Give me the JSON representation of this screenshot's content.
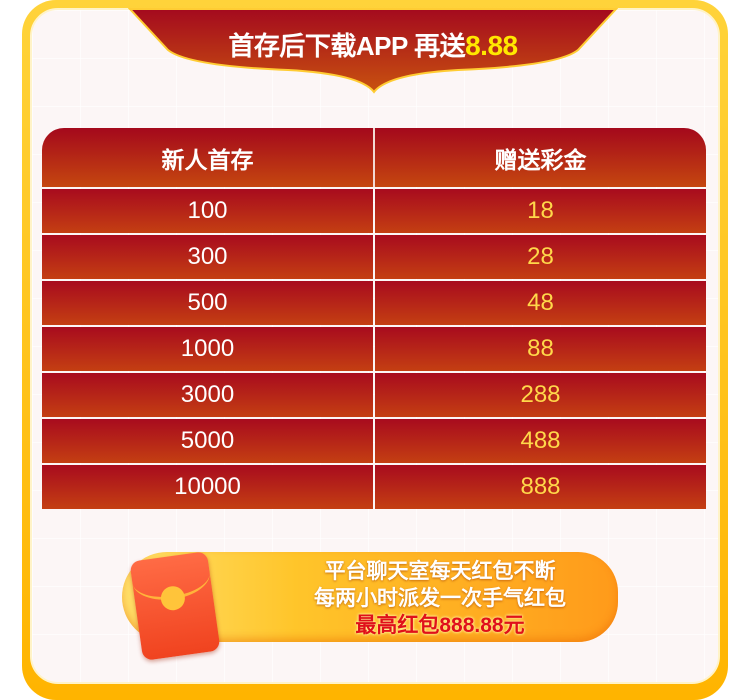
{
  "banner": {
    "title": "首存后下载APP 再送",
    "highlight": "8.88"
  },
  "table": {
    "headers": [
      "新人首存",
      "赠送彩金"
    ],
    "rows": [
      [
        "100",
        "18"
      ],
      [
        "300",
        "28"
      ],
      [
        "500",
        "48"
      ],
      [
        "1000",
        "88"
      ],
      [
        "3000",
        "288"
      ],
      [
        "5000",
        "488"
      ],
      [
        "10000",
        "888"
      ]
    ]
  },
  "promo": {
    "line1": "平台聊天室每天红包不断",
    "line2": "每两小时派发一次手气红包",
    "line3": "最高红包888.88元",
    "icon": "red-envelope-icon"
  },
  "colors": {
    "frame": "#ffc21a",
    "table_red": "#a80b1e",
    "bonus_yellow": "#ffd84a",
    "highlight": "#ffe800"
  }
}
